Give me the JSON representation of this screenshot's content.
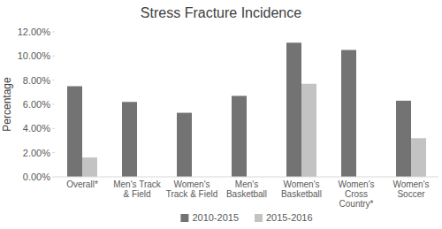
{
  "chart_data": {
    "type": "bar",
    "title": "Stress Fracture Incidence",
    "y_label": "Percentage",
    "categories": [
      "Overall*",
      "Men's Track & Field",
      "Women's Track & Field",
      "Men's Basketball",
      "Women's Basketball",
      "Women's Cross Country*",
      "Women's Soccer"
    ],
    "series": [
      {
        "name": "2010-2015",
        "color": "#737373",
        "values": [
          7.5,
          6.2,
          5.3,
          6.7,
          11.1,
          10.5,
          6.3
        ]
      },
      {
        "name": "2015-2016",
        "color": "#c3c3c3",
        "values": [
          1.6,
          null,
          null,
          null,
          7.7,
          null,
          3.2
        ]
      }
    ],
    "ylim": [
      0,
      12
    ],
    "yticks": [
      {
        "value": 0,
        "label": "0.00%"
      },
      {
        "value": 2,
        "label": "2.00%"
      },
      {
        "value": 4,
        "label": "4.00%"
      },
      {
        "value": 6,
        "label": "6.00%"
      },
      {
        "value": 8,
        "label": "8.00%"
      },
      {
        "value": 10,
        "label": "10.00%"
      },
      {
        "value": 12,
        "label": "12.00%"
      }
    ],
    "grid": false,
    "legend": "bottom"
  }
}
